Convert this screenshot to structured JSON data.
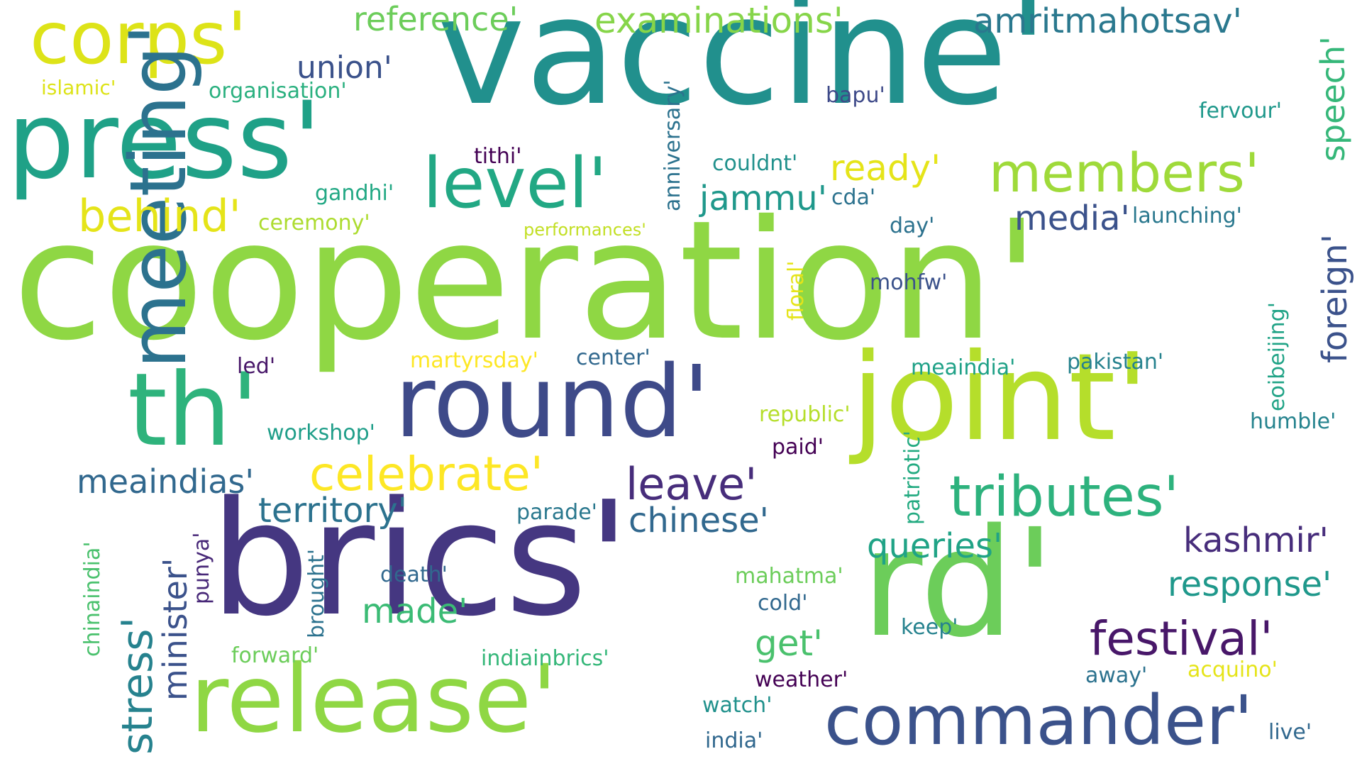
{
  "words": [
    {
      "text": "vaccine'",
      "color": "#21908d"
    },
    {
      "text": "cooperation'",
      "color": "#8fd744"
    },
    {
      "text": "brics'",
      "color": "#453781"
    },
    {
      "text": "rd'",
      "color": "#6ccd5a"
    },
    {
      "text": "press'",
      "color": "#1fa187"
    },
    {
      "text": "joint'",
      "color": "#b5de2b"
    },
    {
      "text": "round'",
      "color": "#3e4a89"
    },
    {
      "text": "th'",
      "color": "#2eb37c"
    },
    {
      "text": "release'",
      "color": "#8fd744"
    },
    {
      "text": "corps'",
      "color": "#dde318"
    },
    {
      "text": "meeting'",
      "color": "#2c728e"
    },
    {
      "text": "commander'",
      "color": "#3b528b"
    },
    {
      "text": "level'",
      "color": "#22a884"
    },
    {
      "text": "members'",
      "color": "#9fda3a"
    },
    {
      "text": "tributes'",
      "color": "#2db27d"
    },
    {
      "text": "examinations'",
      "color": "#86d549"
    },
    {
      "text": "amritmahotsav'",
      "color": "#2a788e"
    },
    {
      "text": "reference'",
      "color": "#6ccd5a"
    },
    {
      "text": "union'",
      "color": "#3b528b"
    },
    {
      "text": "islamic'",
      "color": "#dde318"
    },
    {
      "text": "organisation'",
      "color": "#2ab07f"
    },
    {
      "text": "behind'",
      "color": "#e5e419"
    },
    {
      "text": "celebrate'",
      "color": "#fde725"
    },
    {
      "text": "festival'",
      "color": "#481769"
    },
    {
      "text": "leave'",
      "color": "#472d7b"
    },
    {
      "text": "stress'",
      "color": "#26828e"
    },
    {
      "text": "speech'",
      "color": "#35b779"
    },
    {
      "text": "foreign'",
      "color": "#3b528b"
    },
    {
      "text": "response'",
      "color": "#1f988b"
    },
    {
      "text": "kashmir'",
      "color": "#472d7b"
    },
    {
      "text": "territory'",
      "color": "#2c728e"
    },
    {
      "text": "queries'",
      "color": "#20a386"
    },
    {
      "text": "chinese'",
      "color": "#31688e"
    },
    {
      "text": "minister'",
      "color": "#3b528b"
    },
    {
      "text": "meaindias'",
      "color": "#31688e"
    },
    {
      "text": "jammu'",
      "color": "#1f988b"
    },
    {
      "text": "ready'",
      "color": "#e5e419"
    },
    {
      "text": "media'",
      "color": "#3b528b"
    },
    {
      "text": "get'",
      "color": "#4ac16d"
    },
    {
      "text": "made'",
      "color": "#3bbb75"
    },
    {
      "text": "anniversary'",
      "color": "#2c728e"
    },
    {
      "text": "bapu'",
      "color": "#3e4a89"
    },
    {
      "text": "fervour'",
      "color": "#1f988b"
    },
    {
      "text": "tithi'",
      "color": "#440154"
    },
    {
      "text": "couldnt'",
      "color": "#21918c"
    },
    {
      "text": "gandhi'",
      "color": "#22a884"
    },
    {
      "text": "cda'",
      "color": "#2c728e"
    },
    {
      "text": "ceremony'",
      "color": "#addc30"
    },
    {
      "text": "performances'",
      "color": "#c2df23"
    },
    {
      "text": "launching'",
      "color": "#2a788e"
    },
    {
      "text": "day'",
      "color": "#2c728e"
    },
    {
      "text": "floral'",
      "color": "#e5e419"
    },
    {
      "text": "mohfw'",
      "color": "#3b528b"
    },
    {
      "text": "eoibeijing'",
      "color": "#20a386"
    },
    {
      "text": "led'",
      "color": "#481769"
    },
    {
      "text": "martyrsday'",
      "color": "#fde725"
    },
    {
      "text": "center'",
      "color": "#31688e"
    },
    {
      "text": "meaindia'",
      "color": "#1fa187"
    },
    {
      "text": "pakistan'",
      "color": "#26828e"
    },
    {
      "text": "republic'",
      "color": "#b5de2b"
    },
    {
      "text": "humble'",
      "color": "#25838e"
    },
    {
      "text": "patriotic'",
      "color": "#25ab82"
    },
    {
      "text": "workshop'",
      "color": "#1f9e89"
    },
    {
      "text": "paid'",
      "color": "#440154"
    },
    {
      "text": "parade'",
      "color": "#2a788e"
    },
    {
      "text": "chinaindia'",
      "color": "#4ac16d"
    },
    {
      "text": "punya'",
      "color": "#482878"
    },
    {
      "text": "brought'",
      "color": "#2c728e"
    },
    {
      "text": "death'",
      "color": "#31688e"
    },
    {
      "text": "mahatma'",
      "color": "#6ccd5a"
    },
    {
      "text": "cold'",
      "color": "#31688e"
    },
    {
      "text": "keep'",
      "color": "#26828e"
    },
    {
      "text": "forward'",
      "color": "#6ccd5a"
    },
    {
      "text": "indiainbrics'",
      "color": "#35b779"
    },
    {
      "text": "weather'",
      "color": "#440154"
    },
    {
      "text": "watch'",
      "color": "#21918c"
    },
    {
      "text": "away'",
      "color": "#2c728e"
    },
    {
      "text": "acquino'",
      "color": "#e5e419"
    },
    {
      "text": "india'",
      "color": "#31688e"
    },
    {
      "text": "live'",
      "color": "#31688e"
    }
  ]
}
